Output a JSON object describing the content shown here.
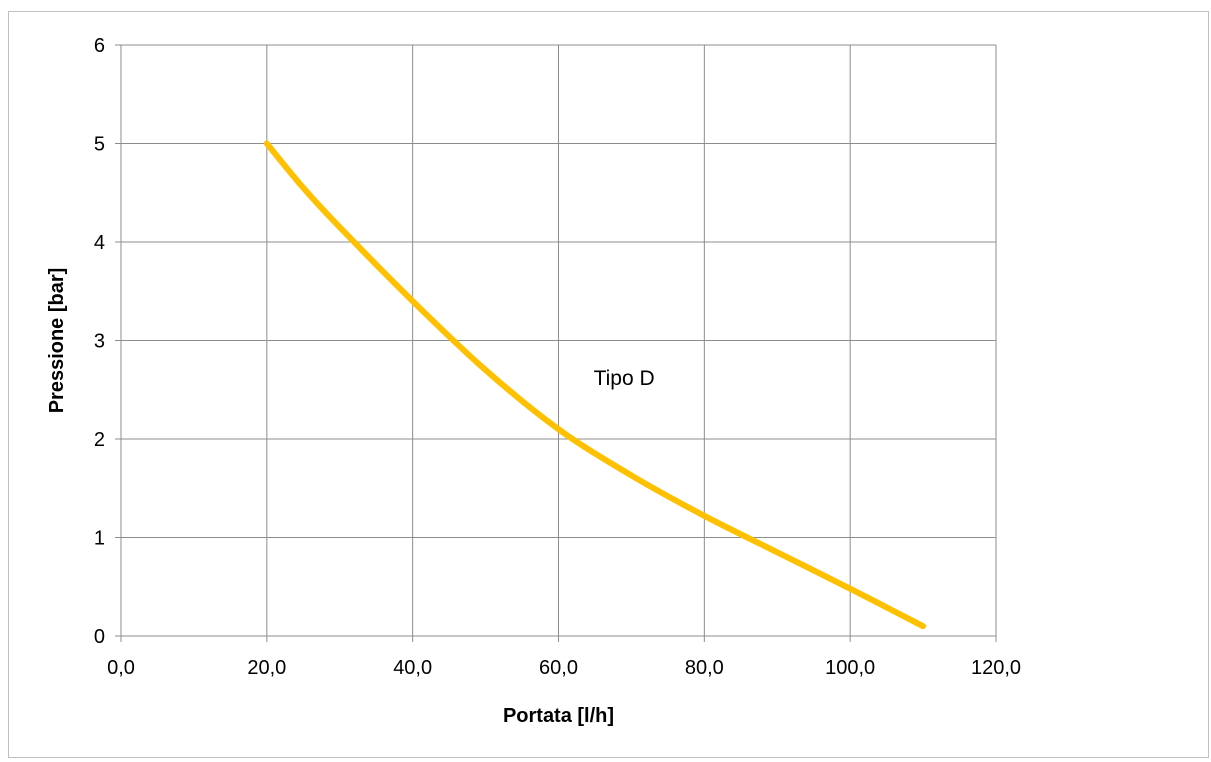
{
  "chart_data": {
    "type": "line",
    "title": "",
    "xlabel": "Portata [l/h]",
    "ylabel": "Pressione [bar]",
    "xlim": [
      0,
      120
    ],
    "ylim": [
      0,
      6
    ],
    "x_ticks": [
      0,
      20,
      40,
      60,
      80,
      100,
      120
    ],
    "x_tick_labels": [
      "0,0",
      "20,0",
      "40,0",
      "60,0",
      "80,0",
      "100,0",
      "120,0"
    ],
    "y_ticks": [
      0,
      1,
      2,
      3,
      4,
      5,
      6
    ],
    "y_tick_labels": [
      "0",
      "1",
      "2",
      "3",
      "4",
      "5",
      "6"
    ],
    "grid": true,
    "legend": "none",
    "annotations": [
      {
        "text": "Tipo D",
        "x": 69,
        "y": 2.55
      }
    ],
    "series": [
      {
        "color": "#FFC000",
        "x": [
          20,
          25,
          30,
          40,
          50,
          60,
          70,
          80,
          90,
          100,
          110
        ],
        "y": [
          5.0,
          4.55,
          4.15,
          3.4,
          2.7,
          2.1,
          1.63,
          1.22,
          0.85,
          0.48,
          0.1
        ]
      }
    ],
    "colors": {
      "grid": "#8c8c8c",
      "axis": "#8c8c8c",
      "frame": "#bfbfbf"
    }
  }
}
